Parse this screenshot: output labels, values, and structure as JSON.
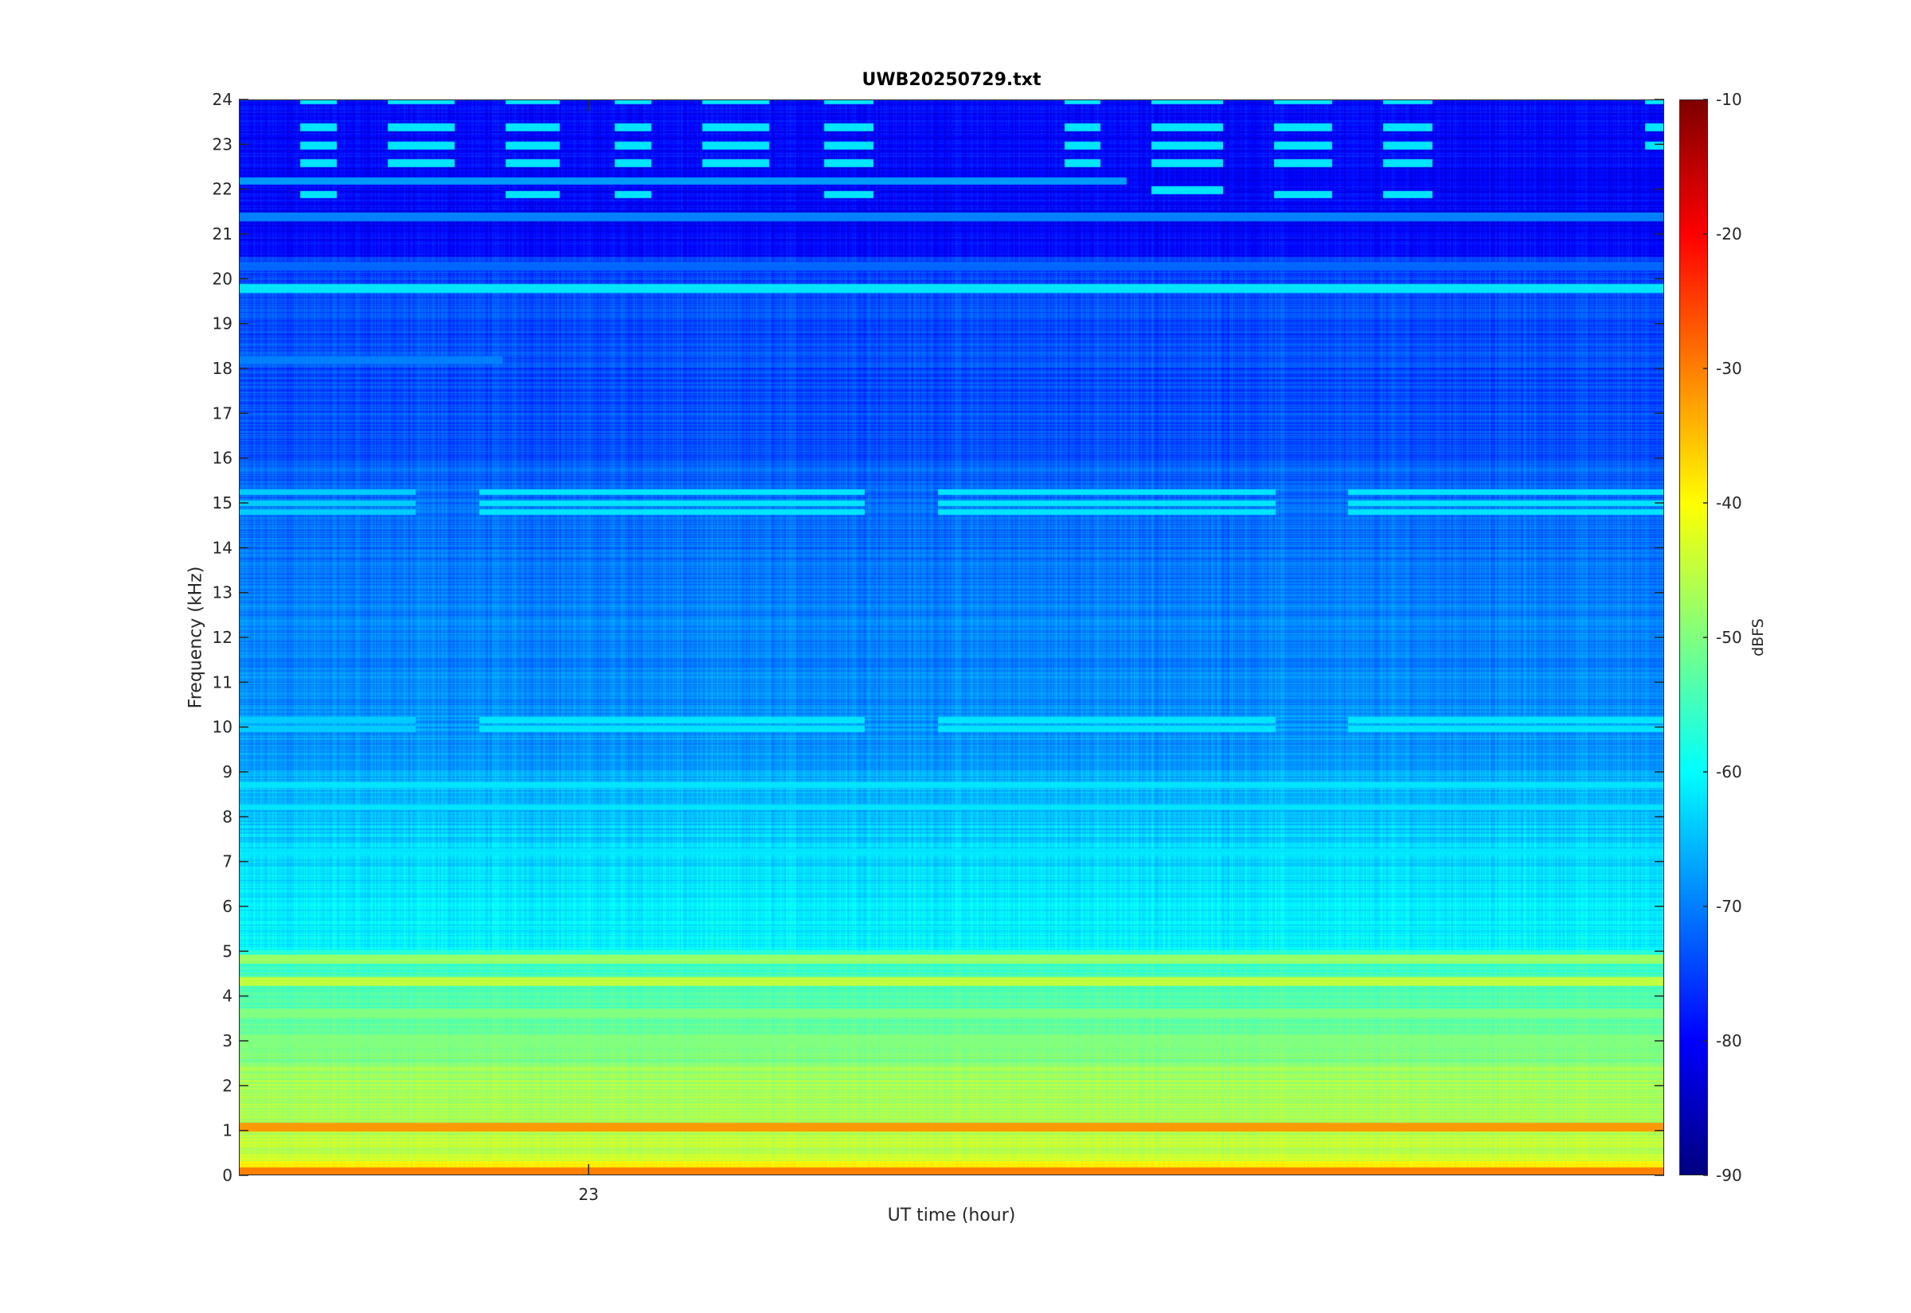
{
  "chart_data": {
    "type": "heatmap",
    "title": "UWB20250729.txt",
    "xlabel": "UT time (hour)",
    "ylabel": "Frequency (kHz)",
    "x_ticks": [
      23
    ],
    "x_tick_labels": [
      "23"
    ],
    "xlim": [
      22.2,
      25.46
    ],
    "ylim": [
      0,
      24
    ],
    "y_ticks": [
      0,
      1,
      2,
      3,
      4,
      5,
      6,
      7,
      8,
      9,
      10,
      11,
      12,
      13,
      14,
      15,
      16,
      17,
      18,
      19,
      20,
      21,
      22,
      23,
      24
    ],
    "y_tick_labels": [
      "0",
      "1",
      "2",
      "3",
      "4",
      "5",
      "6",
      "7",
      "8",
      "9",
      "10",
      "11",
      "12",
      "13",
      "14",
      "15",
      "16",
      "17",
      "18",
      "19",
      "20",
      "21",
      "22",
      "23",
      "24"
    ],
    "colorbar": {
      "label": "dBFS",
      "range": [
        -90,
        -10
      ],
      "ticks": [
        -10,
        -20,
        -30,
        -40,
        -50,
        -60,
        -70,
        -80,
        -90
      ],
      "tick_labels": [
        "-10",
        "-20",
        "-30",
        "-40",
        "-50",
        "-60",
        "-70",
        "-80",
        "-90"
      ],
      "colormap": "jet"
    },
    "constant_lines": [
      {
        "freq_khz": 19.8,
        "level_dbfs": -62
      },
      {
        "freq_khz": 21.4,
        "level_dbfs": -70
      },
      {
        "freq_khz": 20.3,
        "level_dbfs": -72
      },
      {
        "freq_khz": 4.8,
        "level_dbfs": -48
      },
      {
        "freq_khz": 4.3,
        "level_dbfs": -45
      },
      {
        "freq_khz": 3.6,
        "level_dbfs": -50
      },
      {
        "freq_khz": 3.0,
        "level_dbfs": -50
      },
      {
        "freq_khz": 1.05,
        "level_dbfs": -32
      },
      {
        "freq_khz": 0.05,
        "level_dbfs": -30
      }
    ],
    "segment_lines": [
      {
        "freq_khz": 22.2,
        "start": 22.2,
        "end": 24.23,
        "level_dbfs": -68
      },
      {
        "freq_khz": 18.2,
        "start": 22.2,
        "end": 22.8,
        "level_dbfs": -70
      }
    ],
    "bursts": [
      {
        "start": 22.34,
        "end": 22.42,
        "freqs_khz": [
          24.0,
          23.4,
          23.0,
          22.6,
          21.9
        ],
        "level_dbfs": -62
      },
      {
        "start": 22.54,
        "end": 22.69,
        "freqs_khz": [
          24.0,
          23.4,
          23.0,
          22.6
        ],
        "level_dbfs": -62
      },
      {
        "start": 22.81,
        "end": 22.93,
        "freqs_khz": [
          24.0,
          23.4,
          23.0,
          22.6,
          21.9
        ],
        "level_dbfs": -62
      },
      {
        "start": 23.06,
        "end": 23.14,
        "freqs_khz": [
          24.0,
          23.4,
          23.0,
          22.6,
          21.9
        ],
        "level_dbfs": -62
      },
      {
        "start": 23.26,
        "end": 23.41,
        "freqs_khz": [
          24.0,
          23.4,
          23.0,
          22.6
        ],
        "level_dbfs": -62
      },
      {
        "start": 23.54,
        "end": 23.65,
        "freqs_khz": [
          24.0,
          23.4,
          23.0,
          22.6,
          21.9
        ],
        "level_dbfs": -62
      },
      {
        "start": 24.09,
        "end": 24.17,
        "freqs_khz": [
          24.0,
          23.4,
          23.0,
          22.6
        ],
        "level_dbfs": -62
      },
      {
        "start": 24.29,
        "end": 24.45,
        "freqs_khz": [
          24.0,
          23.4,
          23.0,
          22.6,
          22.0
        ],
        "level_dbfs": -62
      },
      {
        "start": 24.57,
        "end": 24.7,
        "freqs_khz": [
          24.0,
          23.4,
          23.0,
          22.6,
          21.9
        ],
        "level_dbfs": -62
      },
      {
        "start": 24.82,
        "end": 24.93,
        "freqs_khz": [
          24.0,
          23.4,
          23.0,
          22.6,
          21.9
        ],
        "level_dbfs": -62
      },
      {
        "start": 25.42,
        "end": 25.46,
        "freqs_khz": [
          24.0,
          23.4,
          23.0
        ],
        "level_dbfs": -62
      }
    ],
    "band_segments": [
      {
        "start": 22.2,
        "end": 22.6,
        "freqs_khz": [
          15.25,
          15.0,
          14.8,
          10.15,
          9.95
        ],
        "level_dbfs": -64
      },
      {
        "start": 22.75,
        "end": 23.63,
        "freqs_khz": [
          15.25,
          15.0,
          14.8,
          10.15,
          9.95
        ],
        "level_dbfs": -62
      },
      {
        "start": 23.8,
        "end": 24.57,
        "freqs_khz": [
          15.25,
          15.0,
          14.8,
          10.15,
          9.95
        ],
        "level_dbfs": -62
      },
      {
        "start": 24.74,
        "end": 25.46,
        "freqs_khz": [
          15.25,
          15.0,
          14.8,
          10.15,
          9.95
        ],
        "level_dbfs": -62
      }
    ],
    "notes_segments": [
      {
        "start": 22.2,
        "end": 25.46,
        "freqs_khz": [
          8.7,
          8.2,
          7.2,
          6.0,
          5.5
        ],
        "level_dbfs": -62
      }
    ]
  }
}
